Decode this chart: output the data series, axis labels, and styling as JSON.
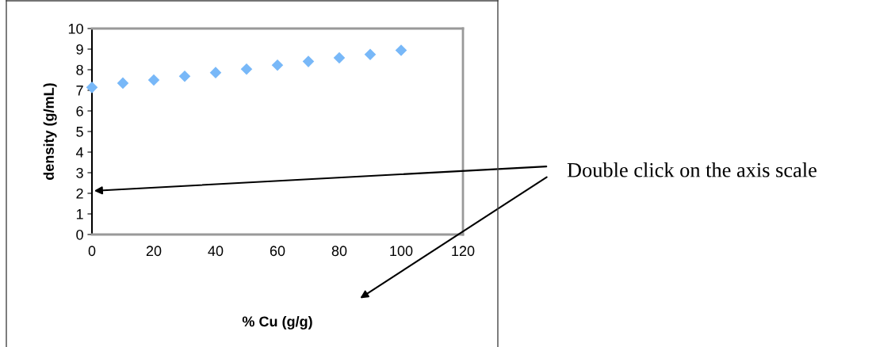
{
  "chart_data": {
    "type": "scatter",
    "xlabel": "% Cu (g/g)",
    "ylabel": "density (g/mL)",
    "x": [
      0,
      10,
      20,
      30,
      40,
      50,
      60,
      70,
      80,
      90,
      100
    ],
    "series": [
      {
        "color": "#78b8f8",
        "values": [
          7.14,
          7.35,
          7.5,
          7.68,
          7.86,
          8.03,
          8.22,
          8.4,
          8.58,
          8.74,
          8.94
        ]
      }
    ],
    "marker": "diamond",
    "xlim": [
      0,
      120
    ],
    "xticks": [
      0,
      20,
      40,
      60,
      80,
      100,
      120
    ],
    "ylim": [
      0,
      10
    ],
    "yticks": [
      0,
      1,
      2,
      3,
      4,
      5,
      6,
      7,
      8,
      9,
      10
    ],
    "grid": false,
    "legend": false,
    "annotations": [
      "Double click on the axis scale"
    ]
  }
}
